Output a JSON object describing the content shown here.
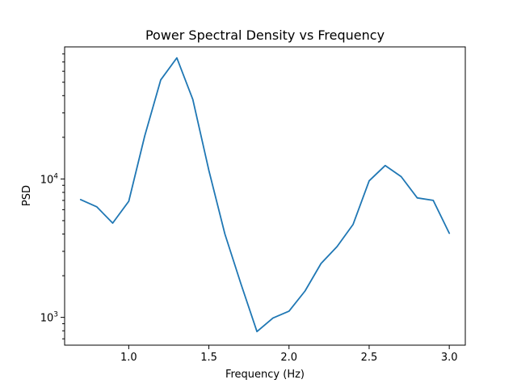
{
  "chart_data": {
    "type": "line",
    "title": "Power Spectral Density vs Frequency",
    "xlabel": "Frequency (Hz)",
    "ylabel": "PSD",
    "xlim": [
      0.6,
      3.1
    ],
    "ylim": [
      630,
      90000
    ],
    "yscale": "log",
    "grid": false,
    "legend": "none",
    "line_color": "#1f77b4",
    "x_ticks": [
      {
        "value": 1.0,
        "label": "1.0"
      },
      {
        "value": 1.5,
        "label": "1.5"
      },
      {
        "value": 2.0,
        "label": "2.0"
      },
      {
        "value": 2.5,
        "label": "2.5"
      },
      {
        "value": 3.0,
        "label": "3.0"
      }
    ],
    "y_major_ticks": [
      {
        "value": 1000,
        "base": "10",
        "exp": "3"
      },
      {
        "value": 10000,
        "base": "10",
        "exp": "4"
      }
    ],
    "y_minor_ticks": [
      700,
      800,
      900,
      2000,
      3000,
      4000,
      5000,
      6000,
      7000,
      8000,
      9000,
      20000,
      30000,
      40000,
      50000,
      60000,
      70000,
      80000
    ],
    "series": [
      {
        "x": [
          0.7,
          0.8,
          0.9,
          1.0,
          1.1,
          1.2,
          1.3,
          1.4,
          1.5,
          1.6,
          1.7,
          1.8,
          1.9,
          2.0,
          2.1,
          2.2,
          2.3,
          2.4,
          2.5,
          2.6,
          2.7,
          2.8,
          2.9,
          3.0
        ],
        "values": [
          7100,
          6300,
          4800,
          6900,
          20500,
          52000,
          75000,
          37500,
          11500,
          4000,
          1750,
          790,
          990,
          1110,
          1550,
          2450,
          3250,
          4700,
          9700,
          12500,
          10400,
          7300,
          7000,
          4050
        ]
      }
    ]
  }
}
